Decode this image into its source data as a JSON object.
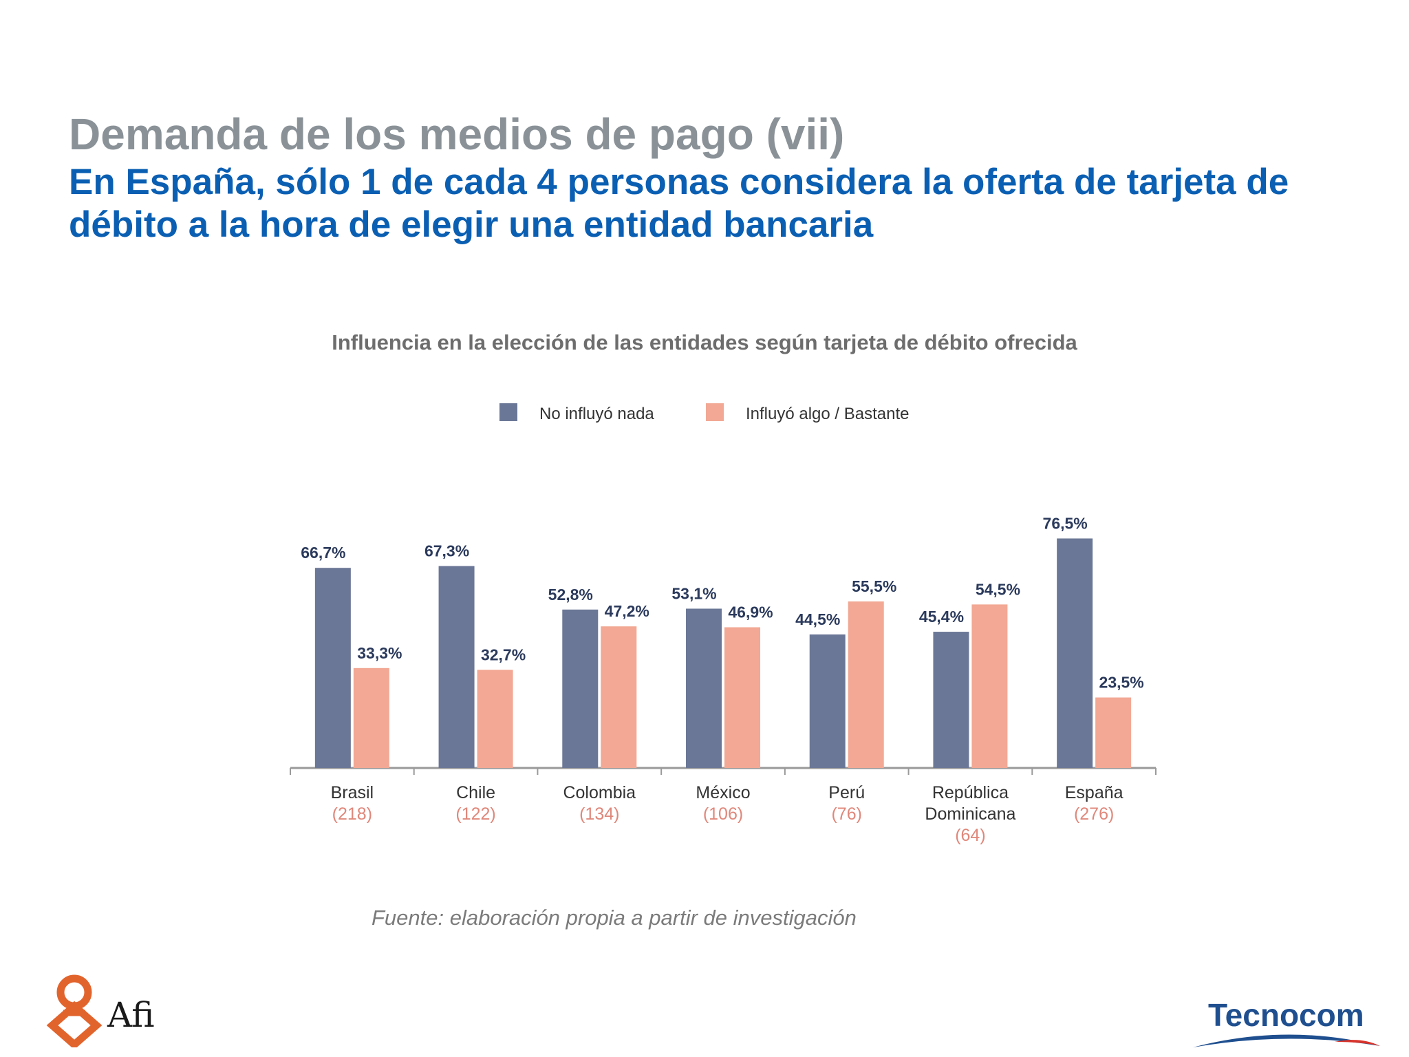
{
  "slide": {
    "title": "Demanda de los medios de pago (vii)",
    "subtitle": "En España, sólo 1 de cada 4 personas considera la oferta de tarjeta de débito a la hora de elegir una entidad bancaria",
    "source": "Fuente: elaboración propia a partir de investigación"
  },
  "logos": {
    "afi": "Afi",
    "tecnocom": "Tecnocom"
  },
  "chart_data": {
    "type": "bar",
    "title": "Influencia en la elección de las entidades según tarjeta de débito ofrecida",
    "categories": [
      "Brasil",
      "Chile",
      "Colombia",
      "México",
      "Perú",
      "República Dominicana",
      "España"
    ],
    "sample_sizes": [
      "(218)",
      "(122)",
      "(134)",
      "(106)",
      "(76)",
      "(64)",
      "(276)"
    ],
    "series": [
      {
        "name": "No influyó nada",
        "color": "#6b7796",
        "values": [
          66.7,
          67.3,
          52.8,
          53.1,
          44.5,
          45.4,
          76.5
        ],
        "labels": [
          "66,7%",
          "67,3%",
          "52,8%",
          "53,1%",
          "44,5%",
          "45,4%",
          "76,5%"
        ]
      },
      {
        "name": "Influyó algo / Bastante",
        "color": "#f2a894",
        "values": [
          33.3,
          32.7,
          47.2,
          46.9,
          55.5,
          54.5,
          23.5
        ],
        "labels": [
          "33,3%",
          "32,7%",
          "47,2%",
          "46,9%",
          "55,5%",
          "54,5%",
          "23,5%"
        ]
      }
    ],
    "ylim": [
      0,
      100
    ],
    "grid": false,
    "legend": "top-center"
  }
}
